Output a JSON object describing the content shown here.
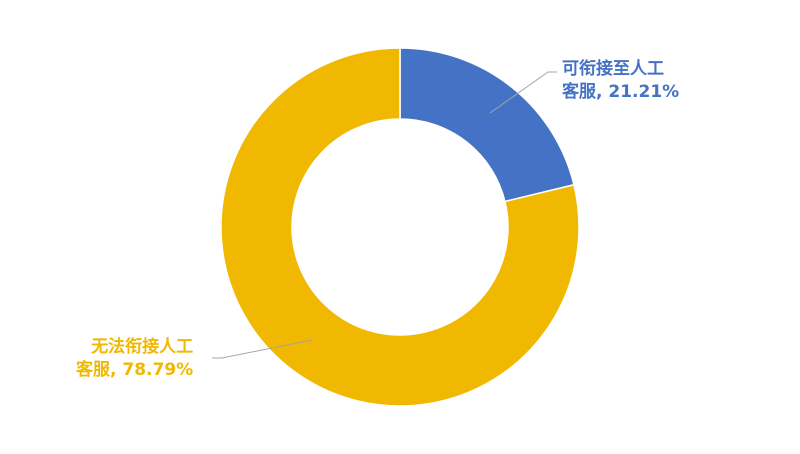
{
  "chart_data": {
    "type": "pie",
    "donut": true,
    "categories": [
      "可衔接至人工客服",
      "无法衔接人工客服"
    ],
    "values": [
      21.21,
      78.79
    ],
    "unit": "%",
    "colors": [
      "#4472C4",
      "#F0B800"
    ],
    "labels": [
      {
        "line1": "可衔接至人工",
        "line2": "客服, 21.21%"
      },
      {
        "line1": "无法衔接人工",
        "line2": "客服, 78.79%"
      }
    ],
    "legend": "none"
  }
}
